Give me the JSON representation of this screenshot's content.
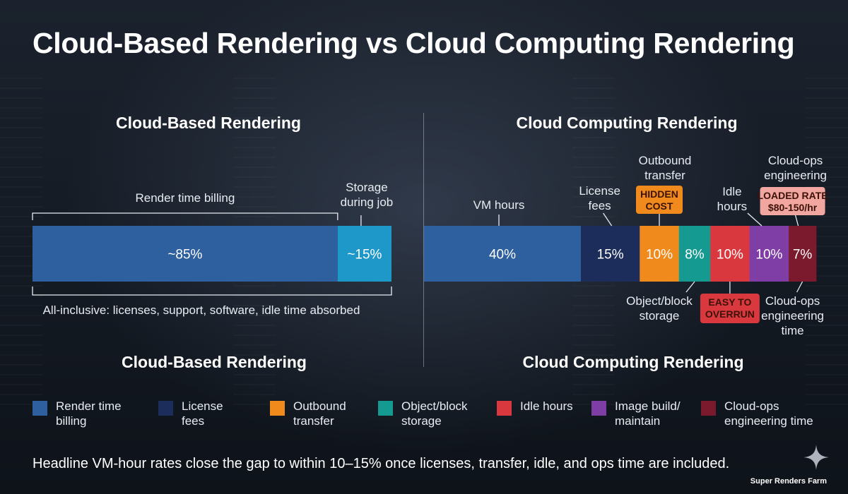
{
  "title": "Cloud-Based Rendering vs Cloud Computing Rendering",
  "footnote": "Headline VM-hour rates close the gap to within 10–15% once licenses, transfer, idle, and ops time are included.",
  "brand": "Super Renders Farm",
  "colors": {
    "render_time_billing": "#2e5f9e",
    "storage_during_job": "#1e98c8",
    "vm_hours": "#2e5f9e",
    "license_fees": "#1c2d5c",
    "outbound_transfer": "#f08a1c",
    "object_block_storage": "#159a92",
    "idle_hours": "#d9393e",
    "image_build_maintain": "#7e3ea6",
    "cloud_ops_engineering_time": "#7a1a2c",
    "callout_text_dark": "#3a1208"
  },
  "chart_data": [
    {
      "type": "bar",
      "orientation": "horizontal-stacked",
      "title": "Cloud-Based Rendering",
      "bottom_title": "Cloud-Based Rendering",
      "segments": [
        {
          "name": "Render time billing",
          "value": 85,
          "label": "~85%",
          "color_key": "render_time_billing"
        },
        {
          "name": "Storage during job",
          "value": 15,
          "label": "~15%",
          "color_key": "storage_during_job"
        }
      ],
      "annotations": {
        "above_bracket": "Render time billing",
        "above_right": "Storage\nduring job",
        "below_bracket": "All-inclusive: licenses, support, software, idle time absorbed"
      }
    },
    {
      "type": "bar",
      "orientation": "horizontal-stacked",
      "title": "Cloud Computing Rendering",
      "bottom_title": "Cloud Computing Rendering",
      "segments": [
        {
          "name": "VM hours",
          "value": 40,
          "label": "40%",
          "color_key": "vm_hours",
          "annotation": "VM hours",
          "annotation_side": "above"
        },
        {
          "name": "License fees",
          "value": 15,
          "label": "15%",
          "color_key": "license_fees",
          "annotation": "License\nfees",
          "annotation_side": "above"
        },
        {
          "name": "Outbound transfer",
          "value": 10,
          "label": "10%",
          "color_key": "outbound_transfer",
          "annotation": "Outbound\ntransfer",
          "annotation_side": "above",
          "callout": "HIDDEN\nCOST"
        },
        {
          "name": "Object/block storage",
          "value": 8,
          "label": "8%",
          "color_key": "object_block_storage",
          "annotation": "Object/block\nstorage",
          "annotation_side": "below"
        },
        {
          "name": "Idle hours",
          "value": 10,
          "label": "10%",
          "color_key": "idle_hours",
          "annotation": "Idle\nhours",
          "annotation_side": "above",
          "callout": "EASY TO\nOVERRUN"
        },
        {
          "name": "Image build/maintain",
          "value": 10,
          "label": "10%",
          "color_key": "image_build_maintain"
        },
        {
          "name": "Cloud-ops engineering time",
          "value": 7,
          "label": "7%",
          "color_key": "cloud_ops_engineering_time",
          "annotation": "Cloud-ops\nengineering\ntime",
          "annotation_side": "below",
          "annotation_top": "Cloud-ops\nengineering",
          "callout": "LOADED RATE\n$80-150/hr"
        }
      ]
    }
  ],
  "legend": [
    {
      "label": "Render time\nbilling",
      "color_key": "render_time_billing"
    },
    {
      "label": "License\nfees",
      "color_key": "license_fees"
    },
    {
      "label": "Outbound\ntransfer",
      "color_key": "outbound_transfer"
    },
    {
      "label": "Object/block\nstorage",
      "color_key": "object_block_storage"
    },
    {
      "label": "Idle hours",
      "color_key": "idle_hours"
    },
    {
      "label": "Image build/\nmaintain",
      "color_key": "image_build_maintain"
    },
    {
      "label": "Cloud-ops\nengineering time",
      "color_key": "cloud_ops_engineering_time"
    }
  ]
}
